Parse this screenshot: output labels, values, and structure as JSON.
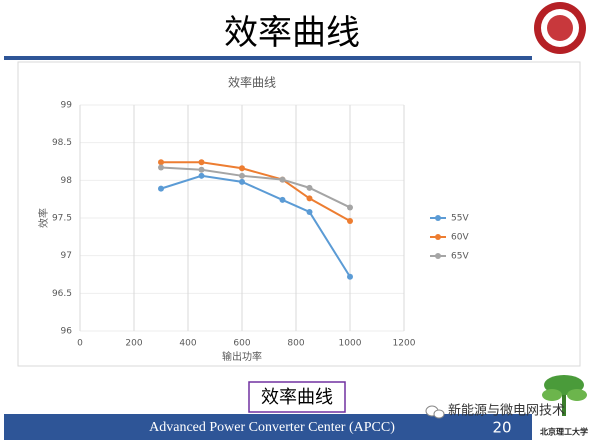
{
  "slide": {
    "title": "效率曲线",
    "caption": "效率曲线",
    "footer": "Advanced Power Converter Center (APCC)",
    "page_number": "20",
    "watermark": "新能源与微电网技术",
    "university": "北京理工大学"
  },
  "chart_data": {
    "type": "line",
    "title": "效率曲线",
    "x_label": "输出功率",
    "y_label": "效率",
    "x": [
      300,
      450,
      600,
      750,
      850,
      1000
    ],
    "series": [
      {
        "name": "55V",
        "color": "#5b9bd5",
        "values": [
          97.89,
          98.06,
          97.98,
          97.74,
          97.58,
          96.72
        ]
      },
      {
        "name": "60V",
        "color": "#ed7d31",
        "values": [
          98.24,
          98.24,
          98.16,
          98.01,
          97.76,
          97.46
        ]
      },
      {
        "name": "65V",
        "color": "#a5a5a5",
        "values": [
          98.17,
          98.14,
          98.06,
          98.01,
          97.9,
          97.64
        ]
      }
    ],
    "xlim": [
      0,
      1200
    ],
    "xticks": [
      0,
      200,
      400,
      600,
      800,
      1000,
      1200
    ],
    "ylim": [
      96,
      99
    ],
    "yticks": [
      96,
      96.5,
      97,
      97.5,
      98,
      98.5,
      99
    ],
    "grid": true,
    "legend": "right"
  }
}
